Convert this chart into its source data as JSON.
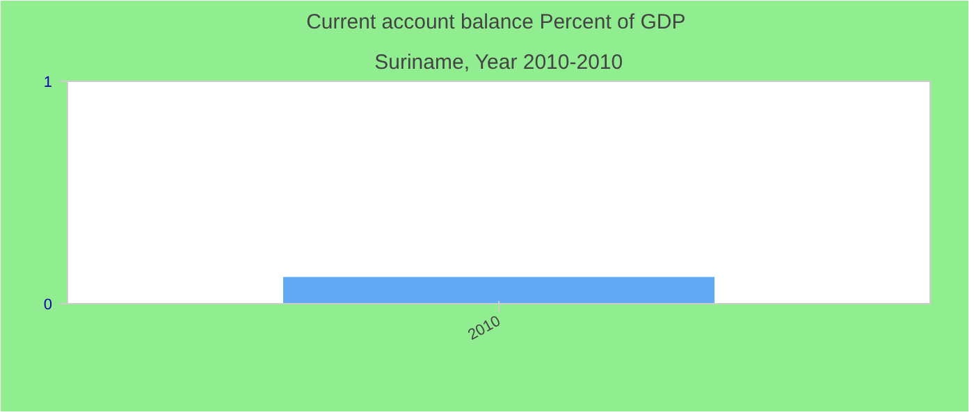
{
  "chart_data": {
    "type": "bar",
    "title": "Current account balance  Percent of GDP",
    "subtitle": "Suriname, Year 2010-2010",
    "categories": [
      "2010"
    ],
    "values": [
      0.12
    ],
    "color": "#63a9f5",
    "ylim": [
      0,
      1
    ],
    "yticks": [
      0,
      1
    ],
    "grid": false
  }
}
